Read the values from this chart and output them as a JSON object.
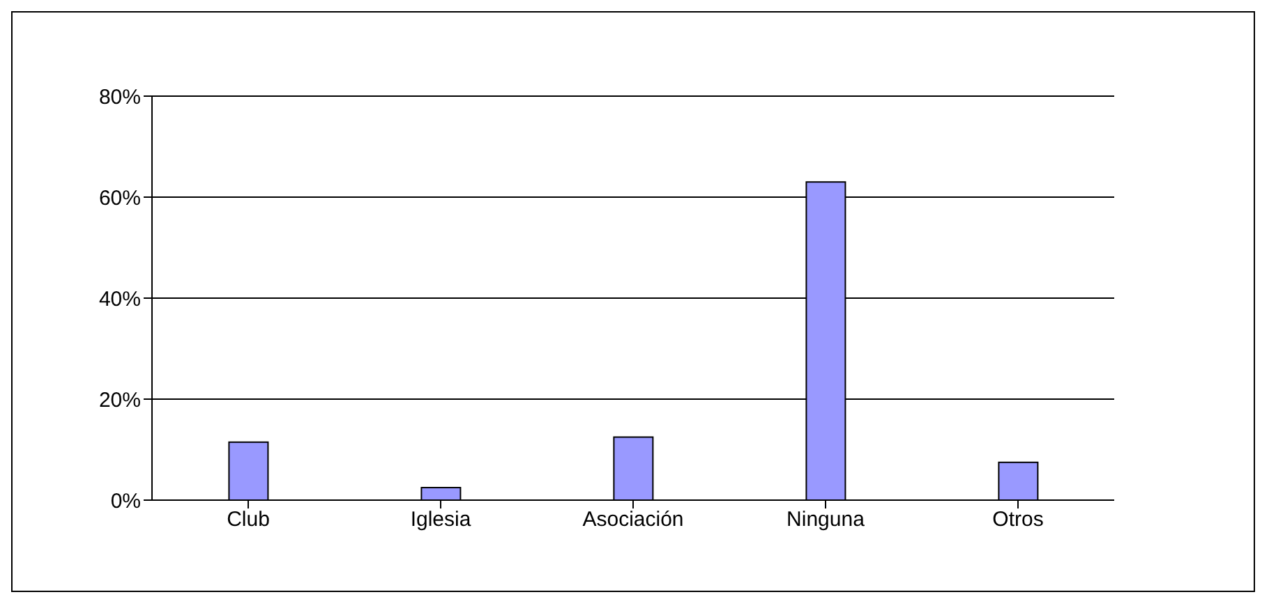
{
  "chart_data": {
    "type": "bar",
    "categories": [
      "Club",
      "Iglesia",
      "Asociación",
      "Ninguna",
      "Otros"
    ],
    "values": [
      11.5,
      2.5,
      12.5,
      63,
      7.5
    ],
    "color": "#9999ff",
    "ylim": [
      0,
      80
    ],
    "yticks": [
      {
        "value": 0,
        "label": "0%"
      },
      {
        "value": 20,
        "label": "20%"
      },
      {
        "value": 40,
        "label": "40%"
      },
      {
        "value": 60,
        "label": "60%"
      },
      {
        "value": 80,
        "label": "80%"
      }
    ],
    "grid": "y"
  }
}
